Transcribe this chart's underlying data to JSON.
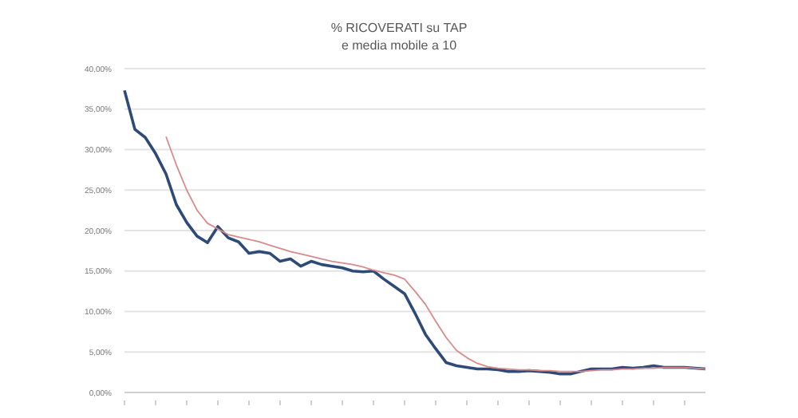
{
  "chart_data": {
    "type": "line",
    "title": "% RICOVERATI su TAP",
    "subtitle": "e media mobile a 10",
    "categories": [
      null,
      null,
      null,
      null,
      null,
      null,
      null,
      null,
      null,
      null,
      null,
      null,
      null,
      null,
      null,
      null,
      null,
      null,
      null,
      null,
      null,
      null,
      null,
      null,
      null,
      null,
      null,
      null,
      null,
      null,
      null,
      null,
      null,
      null,
      null,
      null,
      null,
      null,
      null,
      null,
      null,
      null,
      null,
      null,
      null,
      null,
      null,
      null,
      null,
      null,
      null,
      null,
      null,
      null,
      null,
      null,
      null
    ],
    "ylim": [
      0,
      40
    ],
    "yticks": [
      {
        "value": 0,
        "label": "0,00%"
      },
      {
        "value": 5,
        "label": "5,00%"
      },
      {
        "value": 10,
        "label": "10,00%"
      },
      {
        "value": 15,
        "label": "15,00%"
      },
      {
        "value": 20,
        "label": "20,00%"
      },
      {
        "value": 25,
        "label": "25,00%"
      },
      {
        "value": 30,
        "label": "30,00%"
      },
      {
        "value": 35,
        "label": "35,00%"
      },
      {
        "value": 40,
        "label": "40,00%"
      }
    ],
    "tick_labels": "y",
    "grid": "y",
    "marker": "none",
    "line_style": "solid",
    "series": [
      {
        "color": "#2e4a78",
        "values": [
          37.3,
          32.5,
          31.5,
          29.5,
          27,
          23.2,
          21,
          19.3,
          18.5,
          20.5,
          19.1,
          18.6,
          17.2,
          17.4,
          17.2,
          16.2,
          16.5,
          15.6,
          16.2,
          15.8,
          15.6,
          15.4,
          15,
          14.9,
          15,
          14,
          13.1,
          12.2,
          9.8,
          7.2,
          5.4,
          3.7,
          3.3,
          3.1,
          2.9,
          2.9,
          2.8,
          2.6,
          2.6,
          2.7,
          2.6,
          2.5,
          2.3,
          2.3,
          2.6,
          2.9,
          2.9,
          2.9,
          3.1,
          3,
          3.1,
          3.3,
          3.1,
          3.1,
          3.1,
          3,
          2.9
        ]
      },
      {
        "color": "#d98a8a",
        "values": [
          null,
          null,
          null,
          null,
          31.6,
          28.1,
          25,
          22.5,
          20.9,
          20.2,
          19.5,
          19.2,
          18.9,
          18.6,
          18.2,
          17.8,
          17.4,
          17.1,
          16.8,
          16.5,
          16.2,
          16,
          15.8,
          15.5,
          15.1,
          14.8,
          14.5,
          14,
          12.5,
          10.9,
          8.8,
          6.8,
          5.2,
          4.3,
          3.6,
          3.2,
          3,
          2.9,
          2.8,
          2.8,
          2.7,
          2.7,
          2.6,
          2.6,
          2.6,
          2.7,
          2.8,
          2.8,
          2.9,
          2.9,
          3,
          3,
          3.1,
          3.1,
          3.1,
          3,
          2.9
        ]
      }
    ]
  }
}
